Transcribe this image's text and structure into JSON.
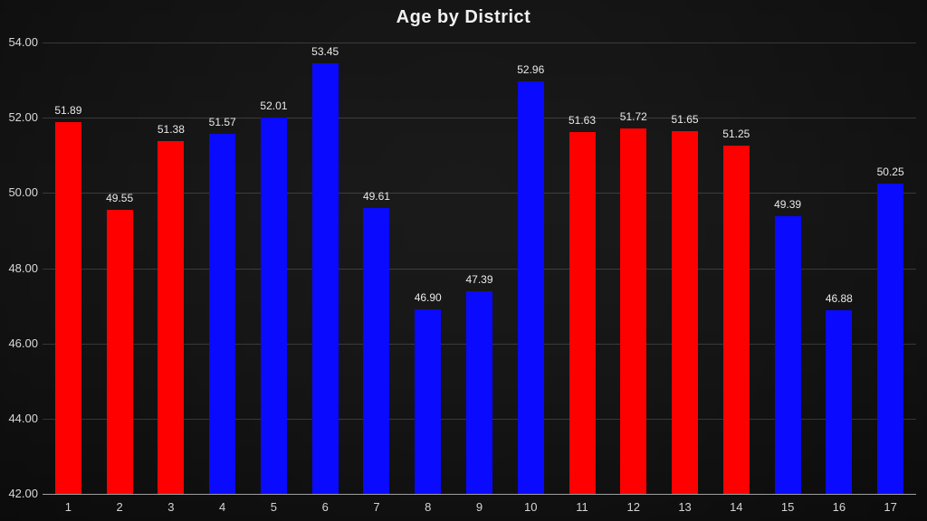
{
  "chart_data": {
    "type": "bar",
    "title": "Age by District",
    "xlabel": "",
    "ylabel": "",
    "categories": [
      "1",
      "2",
      "3",
      "4",
      "5",
      "6",
      "7",
      "8",
      "9",
      "10",
      "11",
      "12",
      "13",
      "14",
      "15",
      "16",
      "17"
    ],
    "values": [
      51.89,
      49.55,
      51.38,
      51.57,
      52.01,
      53.45,
      49.61,
      46.9,
      47.39,
      52.96,
      51.63,
      51.72,
      51.65,
      51.25,
      49.39,
      46.88,
      50.25
    ],
    "bar_colors": [
      "red",
      "red",
      "red",
      "blue",
      "blue",
      "blue",
      "blue",
      "blue",
      "blue",
      "blue",
      "red",
      "red",
      "red",
      "red",
      "blue",
      "blue",
      "blue"
    ],
    "palette": {
      "red": "#fe0000",
      "blue": "#0a0aff"
    },
    "ylim": [
      42,
      54
    ],
    "ytick_step": 2,
    "yticks": [
      "54.00",
      "52.00",
      "50.00",
      "48.00",
      "46.00",
      "44.00",
      "42.00"
    ],
    "value_label_decimals": 2,
    "grid": "horizontal",
    "legend": "none",
    "colors": {
      "title_text": "#f2f2f2",
      "axis_text": "#d9d9d9",
      "value_label_text": "#eaeaea",
      "gridline": "rgba(255,255,255,0.16)",
      "axis_line": "#9e9e9e",
      "background_center": "#5e5e5e",
      "background_edge": "#212121"
    }
  }
}
